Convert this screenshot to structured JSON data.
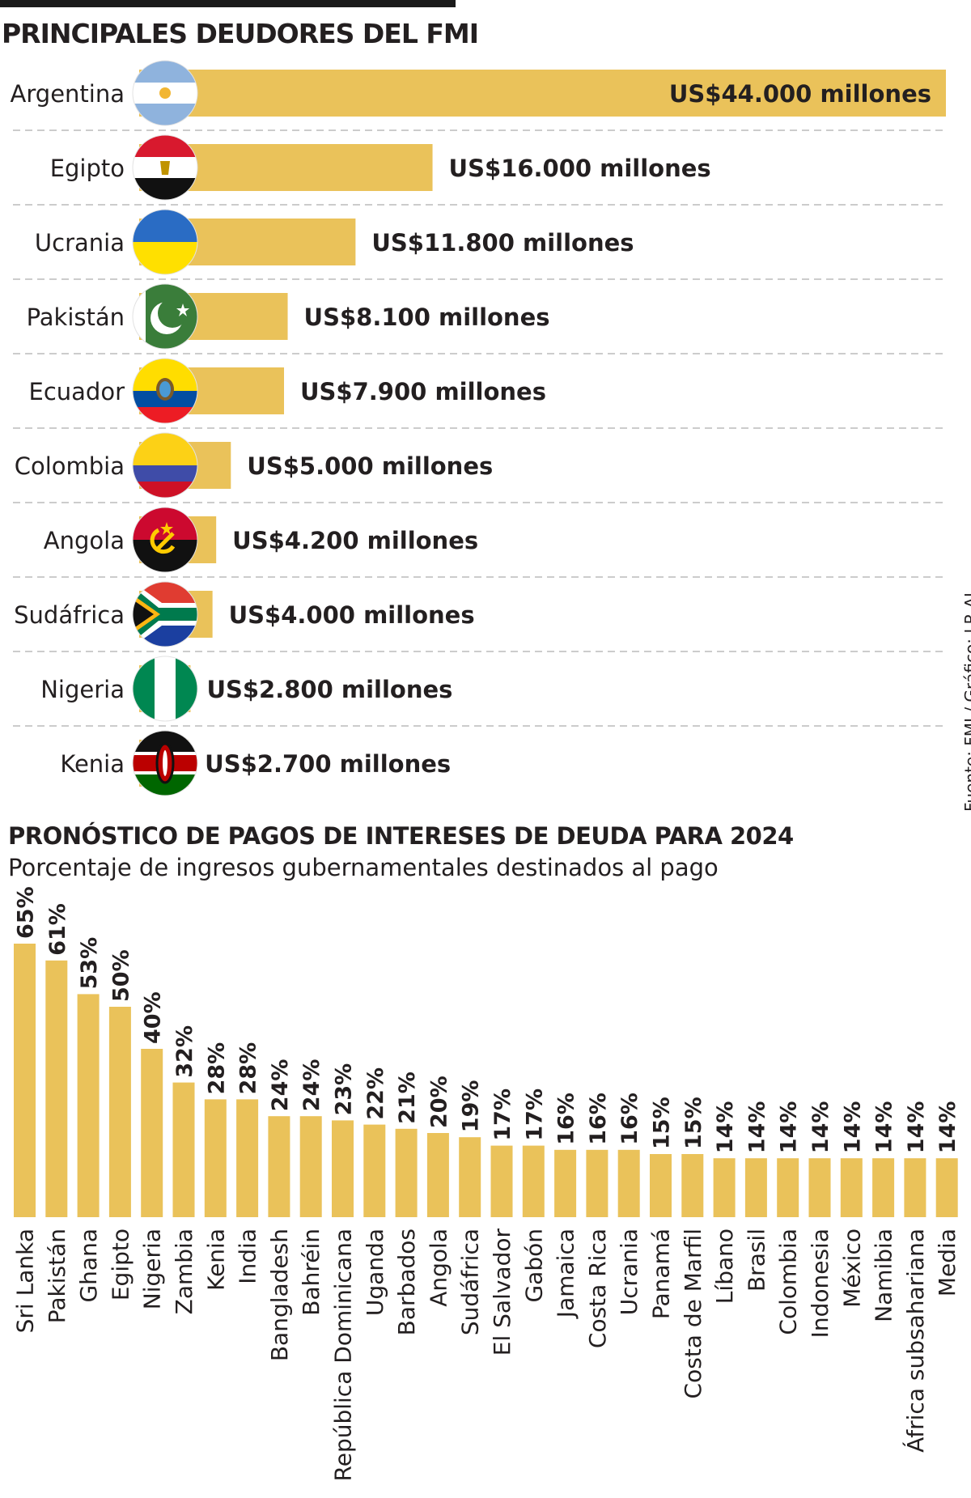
{
  "colors": {
    "bar": "#eac25a",
    "text": "#231f20",
    "divider": "#cccccc"
  },
  "source": "Fuente: FMI / Gráfico: LR-AL",
  "chart_data": [
    {
      "type": "bar",
      "orientation": "horizontal",
      "title": "PRINCIPALES DEUDORES DEL FMI",
      "categories": [
        "Argentina",
        "Egipto",
        "Ucrania",
        "Pakistán",
        "Ecuador",
        "Colombia",
        "Angola",
        "Sudáfrica",
        "Nigeria",
        "Kenia"
      ],
      "values": [
        44000,
        16000,
        11800,
        8100,
        7900,
        5000,
        4200,
        4000,
        2800,
        2700
      ],
      "value_labels": [
        "US$44.000 millones",
        "US$16.000 millones",
        "US$11.800 millones",
        "US$8.100 millones",
        "US$7.900 millones",
        "US$5.000 millones",
        "US$4.200 millones",
        "US$4.000 millones",
        "US$2.800 millones",
        "US$2.700 millones"
      ],
      "unit": "millones de US$",
      "flag_icons": [
        "argentina-flag-icon",
        "egypt-flag-icon",
        "ukraine-flag-icon",
        "pakistan-flag-icon",
        "ecuador-flag-icon",
        "colombia-flag-icon",
        "angola-flag-icon",
        "south-africa-flag-icon",
        "nigeria-flag-icon",
        "kenya-flag-icon"
      ],
      "grid": false
    },
    {
      "type": "bar",
      "orientation": "vertical",
      "title": "PRONÓSTICO DE PAGOS DE INTERESES DE DEUDA PARA 2024",
      "subtitle": "Porcentaje de ingresos gubernamentales destinados al pago",
      "categories": [
        "Sri Lanka",
        "Pakistán",
        "Ghana",
        "Egipto",
        "Nigeria",
        "Zambia",
        "Kenia",
        "India",
        "Bangladesh",
        "Bahréin",
        "República Dominicana",
        "Uganda",
        "Barbados",
        "Angola",
        "Sudáfrica",
        "El Salvador",
        "Gabón",
        "Jamaica",
        "Costa Rica",
        "Ucrania",
        "Panamá",
        "Costa de Marfil",
        "Líbano",
        "Brasil",
        "Colombia",
        "Indonesia",
        "México",
        "Namibia",
        "África subsahariana",
        "Media"
      ],
      "values": [
        65,
        61,
        53,
        50,
        40,
        32,
        28,
        28,
        24,
        24,
        23,
        22,
        21,
        20,
        19,
        17,
        17,
        16,
        16,
        16,
        15,
        15,
        14,
        14,
        14,
        14,
        14,
        14,
        14,
        14
      ],
      "value_labels": [
        "65%",
        "61%",
        "53%",
        "50%",
        "40%",
        "32%",
        "28%",
        "28%",
        "24%",
        "24%",
        "23%",
        "22%",
        "21%",
        "20%",
        "19%",
        "17%",
        "17%",
        "16%",
        "16%",
        "16%",
        "15%",
        "15%",
        "14%",
        "14%",
        "14%",
        "14%",
        "14%",
        "14%",
        "14%",
        "14%"
      ],
      "unit": "%",
      "grid": false
    }
  ]
}
